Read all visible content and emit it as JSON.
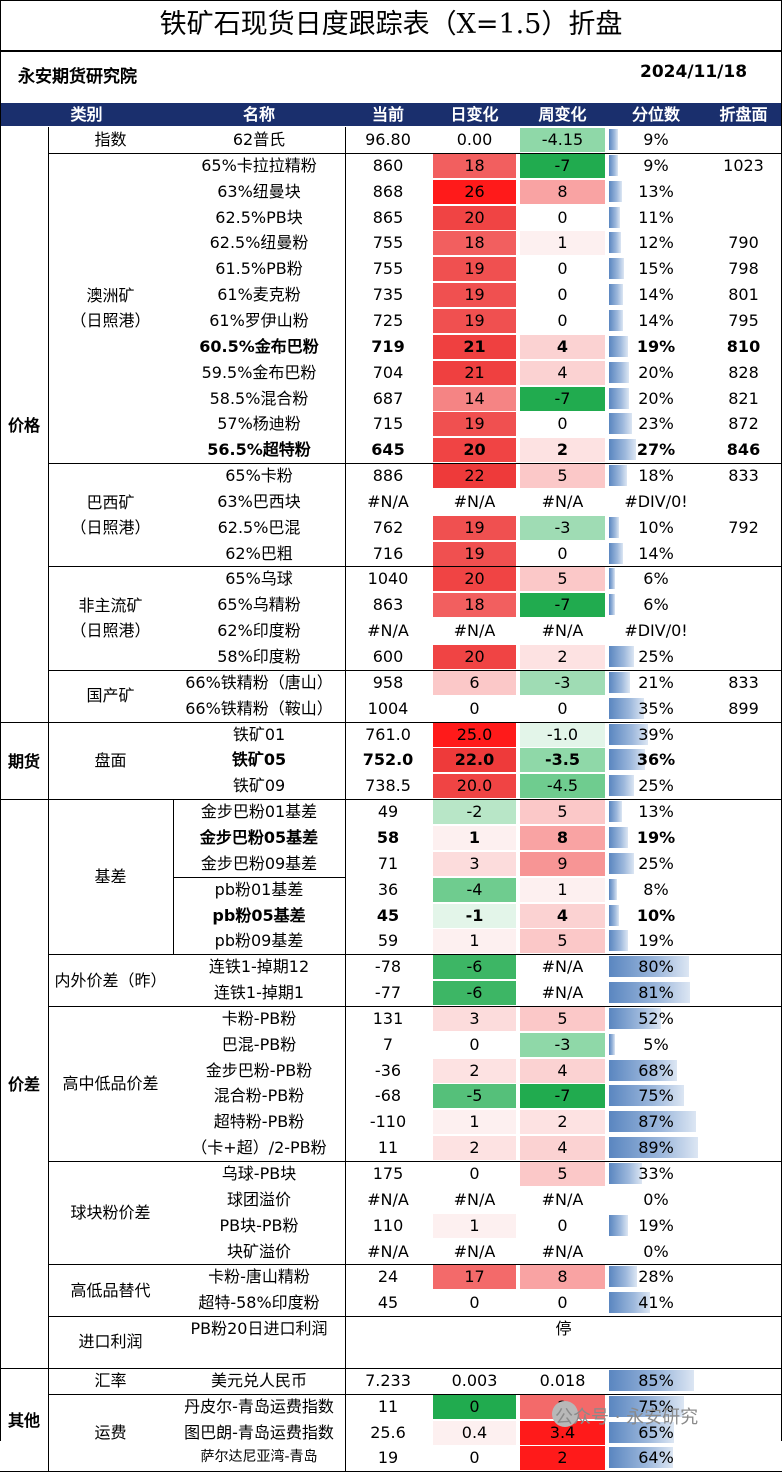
{
  "title": "铁矿石现货日度跟踪表（X=1.5）折盘",
  "org": "永安期货研究院",
  "date": "2024/11/18",
  "headers": [
    "类别",
    "名称",
    "当前",
    "日变化",
    "周变化",
    "分位数",
    "折盘面"
  ],
  "groups": [
    {
      "label": "价格",
      "startRow": 0,
      "endRow": 22
    },
    {
      "label": "期货",
      "startRow": 23,
      "endRow": 25
    },
    {
      "label": "价差",
      "startRow": 26,
      "endRow": 47
    },
    {
      "label": "其他",
      "startRow": 48,
      "endRow": 51
    }
  ],
  "subgroups": [
    {
      "label": "指数",
      "startRow": 0,
      "endRow": 0
    },
    {
      "label": "澳洲矿\n（日照港）",
      "startRow": 1,
      "endRow": 12
    },
    {
      "label": "巴西矿\n（日照港）",
      "startRow": 13,
      "endRow": 16
    },
    {
      "label": "非主流矿\n（日照港）",
      "startRow": 17,
      "endRow": 20
    },
    {
      "label": "国产矿",
      "startRow": 21,
      "endRow": 22
    },
    {
      "label": "盘面",
      "startRow": 23,
      "endRow": 25
    },
    {
      "label": "基差",
      "startRow": 26,
      "endRow": 31
    },
    {
      "label": "内外价差（昨）",
      "startRow": 32,
      "endRow": 33
    },
    {
      "label": "高中低品价差",
      "startRow": 34,
      "endRow": 39
    },
    {
      "label": "球块粉价差",
      "startRow": 40,
      "endRow": 43
    },
    {
      "label": "高低品替代",
      "startRow": 44,
      "endRow": 45
    },
    {
      "label": "进口利润",
      "startRow": 46,
      "endRow": 47
    },
    {
      "label": "汇率",
      "startRow": 48,
      "endRow": 48
    },
    {
      "label": "运费",
      "startRow": 49,
      "endRow": 51
    }
  ],
  "rows": [
    {
      "name": "62普氏",
      "cur": "96.80",
      "day": "0.00",
      "week": "-4.15",
      "pct": "9%",
      "pctv": 0.09,
      "zhe": "",
      "dayc": "#ffffff",
      "weekc": "#8fd8a8",
      "bold": false
    },
    {
      "name": "65%卡拉拉精粉",
      "cur": "860",
      "day": "18",
      "week": "-7",
      "pct": "9%",
      "pctv": 0.09,
      "zhe": "1023",
      "dayc": "#f25f5f",
      "weekc": "#21ab4f",
      "bold": false
    },
    {
      "name": "63%纽曼块",
      "cur": "868",
      "day": "26",
      "week": "8",
      "pct": "13%",
      "pctv": 0.13,
      "zhe": "",
      "dayc": "#ff1a1a",
      "weekc": "#f9a3a3",
      "bold": false
    },
    {
      "name": "62.5%PB块",
      "cur": "865",
      "day": "20",
      "week": "0",
      "pct": "11%",
      "pctv": 0.11,
      "zhe": "",
      "dayc": "#f04444",
      "weekc": "#ffffff",
      "bold": false
    },
    {
      "name": "62.5%纽曼粉",
      "cur": "755",
      "day": "18",
      "week": "1",
      "pct": "12%",
      "pctv": 0.12,
      "zhe": "790",
      "dayc": "#f25f5f",
      "weekc": "#fdf0f0",
      "bold": false
    },
    {
      "name": "61.5%PB粉",
      "cur": "755",
      "day": "19",
      "week": "0",
      "pct": "15%",
      "pctv": 0.15,
      "zhe": "798",
      "dayc": "#f05050",
      "weekc": "#ffffff",
      "bold": false
    },
    {
      "name": "61%麦克粉",
      "cur": "735",
      "day": "19",
      "week": "0",
      "pct": "14%",
      "pctv": 0.14,
      "zhe": "801",
      "dayc": "#f05050",
      "weekc": "#ffffff",
      "bold": false
    },
    {
      "name": "61%罗伊山粉",
      "cur": "725",
      "day": "19",
      "week": "0",
      "pct": "14%",
      "pctv": 0.14,
      "zhe": "795",
      "dayc": "#f05050",
      "weekc": "#ffffff",
      "bold": false
    },
    {
      "name": "60.5%金布巴粉",
      "cur": "719",
      "day": "21",
      "week": "4",
      "pct": "19%",
      "pctv": 0.19,
      "zhe": "810",
      "dayc": "#ef4040",
      "weekc": "#fbd2d2",
      "bold": true
    },
    {
      "name": "59.5%金布巴粉",
      "cur": "704",
      "day": "21",
      "week": "4",
      "pct": "20%",
      "pctv": 0.2,
      "zhe": "828",
      "dayc": "#ef4040",
      "weekc": "#fbd2d2",
      "bold": false
    },
    {
      "name": "58.5%混合粉",
      "cur": "687",
      "day": "14",
      "week": "-7",
      "pct": "20%",
      "pctv": 0.2,
      "zhe": "821",
      "dayc": "#f58484",
      "weekc": "#21ab4f",
      "bold": false
    },
    {
      "name": "57%杨迪粉",
      "cur": "715",
      "day": "19",
      "week": "0",
      "pct": "23%",
      "pctv": 0.23,
      "zhe": "872",
      "dayc": "#f05050",
      "weekc": "#ffffff",
      "bold": false
    },
    {
      "name": "56.5%超特粉",
      "cur": "645",
      "day": "20",
      "week": "2",
      "pct": "27%",
      "pctv": 0.27,
      "zhe": "846",
      "dayc": "#f04444",
      "weekc": "#fde2e2",
      "bold": true
    },
    {
      "name": "65%卡粉",
      "cur": "886",
      "day": "22",
      "week": "5",
      "pct": "18%",
      "pctv": 0.18,
      "zhe": "833",
      "dayc": "#ee3a3a",
      "weekc": "#fbc8c8",
      "bold": false
    },
    {
      "name": "63%巴西块",
      "cur": "#N/A",
      "day": "#N/A",
      "week": "#N/A",
      "pct": "#DIV/0!",
      "pctv": 0,
      "zhe": "",
      "dayc": "#ffffff",
      "weekc": "#ffffff",
      "bold": false
    },
    {
      "name": "62.5%巴混",
      "cur": "762",
      "day": "19",
      "week": "-3",
      "pct": "10%",
      "pctv": 0.1,
      "zhe": "792",
      "dayc": "#f05050",
      "weekc": "#9fdcb4",
      "bold": false
    },
    {
      "name": "62%巴粗",
      "cur": "716",
      "day": "19",
      "week": "0",
      "pct": "14%",
      "pctv": 0.14,
      "zhe": "",
      "dayc": "#f05050",
      "weekc": "#ffffff",
      "bold": false
    },
    {
      "name": "65%乌球",
      "cur": "1040",
      "day": "20",
      "week": "5",
      "pct": "6%",
      "pctv": 0.06,
      "zhe": "",
      "dayc": "#f04444",
      "weekc": "#fbc8c8",
      "bold": false
    },
    {
      "name": "65%乌精粉",
      "cur": "863",
      "day": "18",
      "week": "-7",
      "pct": "6%",
      "pctv": 0.06,
      "zhe": "",
      "dayc": "#f25f5f",
      "weekc": "#21ab4f",
      "bold": false
    },
    {
      "name": "62%印度粉",
      "cur": "#N/A",
      "day": "#N/A",
      "week": "#N/A",
      "pct": "#DIV/0!",
      "pctv": 0,
      "zhe": "",
      "dayc": "#ffffff",
      "weekc": "#ffffff",
      "bold": false
    },
    {
      "name": "58%印度粉",
      "cur": "600",
      "day": "20",
      "week": "2",
      "pct": "25%",
      "pctv": 0.25,
      "zhe": "",
      "dayc": "#f04444",
      "weekc": "#fde2e2",
      "bold": false
    },
    {
      "name": "66%铁精粉（唐山）",
      "cur": "958",
      "day": "6",
      "week": "-3",
      "pct": "21%",
      "pctv": 0.21,
      "zhe": "833",
      "dayc": "#fbc8c8",
      "weekc": "#9fdcb4",
      "bold": false
    },
    {
      "name": "66%铁精粉（鞍山）",
      "cur": "1004",
      "day": "0",
      "week": "0",
      "pct": "35%",
      "pctv": 0.35,
      "zhe": "899",
      "dayc": "#ffffff",
      "weekc": "#ffffff",
      "bold": false
    },
    {
      "name": "铁矿01",
      "cur": "761.0",
      "day": "25.0",
      "week": "-1.0",
      "pct": "39%",
      "pctv": 0.39,
      "zhe": "",
      "dayc": "#ff1a1a",
      "weekc": "#e3f5e9",
      "bold": false
    },
    {
      "name": "铁矿05",
      "cur": "752.0",
      "day": "22.0",
      "week": "-3.5",
      "pct": "36%",
      "pctv": 0.36,
      "zhe": "",
      "dayc": "#ee3a3a",
      "weekc": "#8fd8a8",
      "bold": true
    },
    {
      "name": "铁矿09",
      "cur": "738.5",
      "day": "20.0",
      "week": "-4.5",
      "pct": "25%",
      "pctv": 0.25,
      "zhe": "",
      "dayc": "#f04444",
      "weekc": "#6fcc8f",
      "bold": false
    },
    {
      "name": "金步巴粉01基差",
      "cur": "49",
      "day": "-2",
      "week": "5",
      "pct": "13%",
      "pctv": 0.13,
      "zhe": "",
      "dayc": "#b8e6c7",
      "weekc": "#fbc8c8",
      "bold": false
    },
    {
      "name": "金步巴粉05基差",
      "cur": "58",
      "day": "1",
      "week": "8",
      "pct": "19%",
      "pctv": 0.19,
      "zhe": "",
      "dayc": "#fdf0f0",
      "weekc": "#f9a3a3",
      "bold": true
    },
    {
      "name": "金步巴粉09基差",
      "cur": "71",
      "day": "3",
      "week": "9",
      "pct": "25%",
      "pctv": 0.25,
      "zhe": "",
      "dayc": "#fcdcdc",
      "weekc": "#f79595",
      "bold": false
    },
    {
      "name": "pb粉01基差",
      "cur": "36",
      "day": "-4",
      "week": "1",
      "pct": "8%",
      "pctv": 0.08,
      "zhe": "",
      "dayc": "#6fcc8f",
      "weekc": "#fdf0f0",
      "bold": false
    },
    {
      "name": "pb粉05基差",
      "cur": "45",
      "day": "-1",
      "week": "4",
      "pct": "10%",
      "pctv": 0.1,
      "zhe": "",
      "dayc": "#e3f5e9",
      "weekc": "#fbd2d2",
      "bold": true
    },
    {
      "name": "pb粉09基差",
      "cur": "59",
      "day": "1",
      "week": "5",
      "pct": "19%",
      "pctv": 0.19,
      "zhe": "",
      "dayc": "#fdf0f0",
      "weekc": "#fbc8c8",
      "bold": false
    },
    {
      "name": "连铁1-掉期12",
      "cur": "-78",
      "day": "-6",
      "week": "#N/A",
      "pct": "80%",
      "pctv": 0.8,
      "zhe": "",
      "dayc": "#3db665",
      "weekc": "#ffffff",
      "bold": false
    },
    {
      "name": "连铁1-掉期1",
      "cur": "-77",
      "day": "-6",
      "week": "#N/A",
      "pct": "81%",
      "pctv": 0.81,
      "zhe": "",
      "dayc": "#3db665",
      "weekc": "#ffffff",
      "bold": false
    },
    {
      "name": "卡粉-PB粉",
      "cur": "131",
      "day": "3",
      "week": "5",
      "pct": "52%",
      "pctv": 0.52,
      "zhe": "",
      "dayc": "#fcdcdc",
      "weekc": "#fbc8c8",
      "bold": false
    },
    {
      "name": "巴混-PB粉",
      "cur": "7",
      "day": "0",
      "week": "-3",
      "pct": "5%",
      "pctv": 0.05,
      "zhe": "",
      "dayc": "#ffffff",
      "weekc": "#8fd8a8",
      "bold": false
    },
    {
      "name": "金步巴粉-PB粉",
      "cur": "-36",
      "day": "2",
      "week": "4",
      "pct": "68%",
      "pctv": 0.68,
      "zhe": "",
      "dayc": "#fde2e2",
      "weekc": "#fbd2d2",
      "bold": false
    },
    {
      "name": "混合粉-PB粉",
      "cur": "-68",
      "day": "-5",
      "week": "-7",
      "pct": "75%",
      "pctv": 0.75,
      "zhe": "",
      "dayc": "#55c07a",
      "weekc": "#21ab4f",
      "bold": false
    },
    {
      "name": "超特粉-PB粉",
      "cur": "-110",
      "day": "1",
      "week": "2",
      "pct": "87%",
      "pctv": 0.87,
      "zhe": "",
      "dayc": "#fdf0f0",
      "weekc": "#fde2e2",
      "bold": false
    },
    {
      "name": "（卡+超）/2-PB粉",
      "cur": "11",
      "day": "2",
      "week": "4",
      "pct": "89%",
      "pctv": 0.89,
      "zhe": "",
      "dayc": "#fde2e2",
      "weekc": "#fbd2d2",
      "bold": false
    },
    {
      "name": "乌球-PB块",
      "cur": "175",
      "day": "0",
      "week": "5",
      "pct": "33%",
      "pctv": 0.33,
      "zhe": "",
      "dayc": "#ffffff",
      "weekc": "#fbc8c8",
      "bold": false
    },
    {
      "name": "球团溢价",
      "cur": "#N/A",
      "day": "#N/A",
      "week": "#N/A",
      "pct": "0%",
      "pctv": 0,
      "zhe": "",
      "dayc": "#ffffff",
      "weekc": "#ffffff",
      "bold": false
    },
    {
      "name": "PB块-PB粉",
      "cur": "110",
      "day": "1",
      "week": "0",
      "pct": "19%",
      "pctv": 0.19,
      "zhe": "",
      "dayc": "#fdf0f0",
      "weekc": "#ffffff",
      "bold": false
    },
    {
      "name": "块矿溢价",
      "cur": "#N/A",
      "day": "#N/A",
      "week": "#N/A",
      "pct": "0%",
      "pctv": 0,
      "zhe": "",
      "dayc": "#ffffff",
      "weekc": "#ffffff",
      "bold": false
    },
    {
      "name": "卡粉-唐山精粉",
      "cur": "24",
      "day": "17",
      "week": "8",
      "pct": "28%",
      "pctv": 0.28,
      "zhe": "",
      "dayc": "#f36a6a",
      "weekc": "#f9a3a3",
      "bold": false
    },
    {
      "name": "超特-58%印度粉",
      "cur": "45",
      "day": "0",
      "week": "0",
      "pct": "41%",
      "pctv": 0.41,
      "zhe": "",
      "dayc": "#ffffff",
      "weekc": "#ffffff",
      "bold": false
    },
    {
      "name": "PB粉20日进口利润",
      "cur": "",
      "day": "",
      "week": "",
      "pct": "",
      "pctv": -1,
      "zhe": "",
      "dayc": "#ffffff",
      "weekc": "#ffffff",
      "bold": false,
      "merged": "停"
    },
    {
      "name": "",
      "cur": "",
      "day": "",
      "week": "",
      "pct": "",
      "pctv": -1,
      "zhe": "",
      "dayc": "#ffffff",
      "weekc": "#ffffff",
      "bold": false,
      "hidden": true
    },
    {
      "name": "美元兑人民币",
      "cur": "7.233",
      "day": "0.003",
      "week": "0.018",
      "pct": "85%",
      "pctv": 0.85,
      "zhe": "",
      "dayc": "#ffffff",
      "weekc": "#ffffff",
      "bold": false
    },
    {
      "name": "丹皮尔-青岛运费指数",
      "cur": "11",
      "day": "0",
      "week": "2",
      "pct": "75%",
      "pctv": 0.75,
      "zhe": "",
      "dayc": "#21ab4f",
      "weekc": "#f36a6a",
      "bold": false
    },
    {
      "name": "图巴朗-青岛运费指数",
      "cur": "25.6",
      "day": "0.4",
      "week": "3.4",
      "pct": "65%",
      "pctv": 0.65,
      "zhe": "",
      "dayc": "#fdf0f0",
      "weekc": "#ff1a1a",
      "bold": false
    },
    {
      "name": "萨尔达尼亚湾-青岛",
      "cur": "19",
      "day": "0",
      "week": "2",
      "pct": "64%",
      "pctv": 0.64,
      "zhe": "",
      "dayc": "#ffffff",
      "weekc": "#ff1a1a",
      "bold": false,
      "small": true
    }
  ],
  "watermark": "公众号 · 永安研究"
}
